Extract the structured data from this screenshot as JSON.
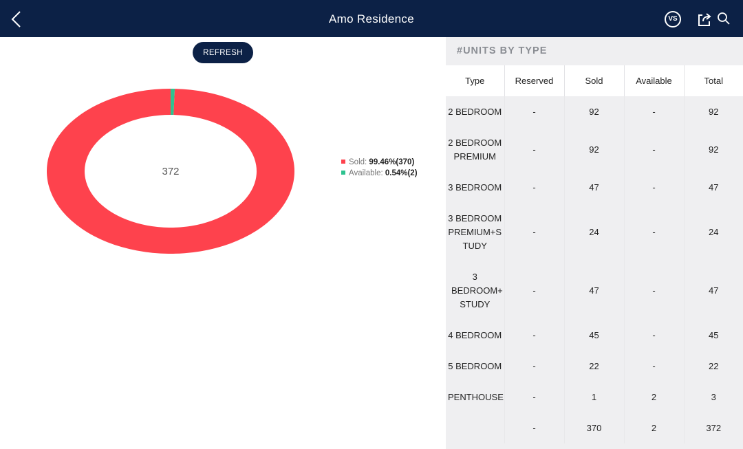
{
  "header": {
    "title": "Amo Residence",
    "back_icon": "chevron-left-icon",
    "vs_label": "VS",
    "share_icon": "share-icon",
    "search_icon": "search-icon"
  },
  "refresh_label": "REFRESH",
  "chart_data": {
    "type": "pie",
    "style": "donut",
    "center_label": "372",
    "slices": [
      {
        "name": "Sold",
        "value": 370,
        "percent": "99.46%",
        "color": "#fe424d"
      },
      {
        "name": "Available",
        "value": 2,
        "percent": "0.54%",
        "color": "#2ec28f"
      }
    ],
    "legend": [
      {
        "label": "Sold:",
        "value": "99.46%(370)",
        "color": "#fe424d"
      },
      {
        "label": "Available:",
        "value": "0.54%(2)",
        "color": "#2ec28f"
      }
    ],
    "legend_position": "right"
  },
  "panel": {
    "title": "#UNITS BY TYPE",
    "columns": [
      "Type",
      "Reserved",
      "Sold",
      "Available",
      "Total"
    ],
    "rows": [
      {
        "type": "2 BEDROOM",
        "reserved": "-",
        "sold": "92",
        "available": "-",
        "total": "92"
      },
      {
        "type": "2 BEDROOM PREMIUM",
        "reserved": "-",
        "sold": "92",
        "available": "-",
        "total": "92"
      },
      {
        "type": "3 BEDROOM",
        "reserved": "-",
        "sold": "47",
        "available": "-",
        "total": "47"
      },
      {
        "type": "3 BEDROOM PREMIUM+STUDY",
        "reserved": "-",
        "sold": "24",
        "available": "-",
        "total": "24"
      },
      {
        "type": "3 BEDROOM+ STUDY",
        "reserved": "-",
        "sold": "47",
        "available": "-",
        "total": "47"
      },
      {
        "type": "4 BEDROOM",
        "reserved": "-",
        "sold": "45",
        "available": "-",
        "total": "45"
      },
      {
        "type": "5 BEDROOM",
        "reserved": "-",
        "sold": "22",
        "available": "-",
        "total": "22"
      },
      {
        "type": "PENTHOUSE",
        "reserved": "-",
        "sold": "1",
        "available": "2",
        "total": "3"
      }
    ],
    "totals": {
      "type": "",
      "reserved": "-",
      "sold": "370",
      "available": "2",
      "total": "372"
    }
  }
}
